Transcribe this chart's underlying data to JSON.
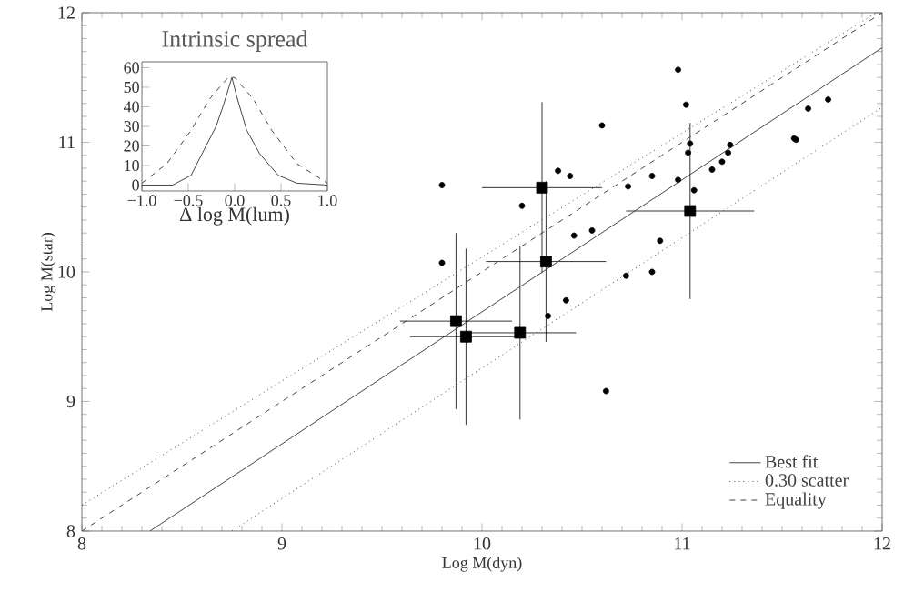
{
  "chart_data": [
    {
      "type": "scatter",
      "xlabel": "Log M(dyn)",
      "ylabel": "Log M(star)",
      "xlim": [
        8,
        12
      ],
      "ylim": [
        8,
        12
      ],
      "xticks": [
        8,
        9,
        10,
        11,
        12
      ],
      "yticks": [
        8,
        9,
        10,
        11,
        12
      ],
      "grid": false,
      "legend": "bottom right",
      "series": [
        {
          "type": "scatter",
          "marker": "circle",
          "color": "#000000",
          "x": [
            9.8,
            9.8,
            10.2,
            10.38,
            10.44,
            10.6,
            10.73,
            10.85,
            10.46,
            10.55,
            10.89,
            10.72,
            10.85,
            10.42,
            10.98,
            11.02,
            11.04,
            11.03,
            10.98,
            11.06,
            11.15,
            11.2,
            11.23,
            11.24,
            11.56,
            11.57,
            11.63,
            11.73,
            10.33,
            10.62
          ],
          "values": [
            10.67,
            10.07,
            10.51,
            10.78,
            10.74,
            11.13,
            10.66,
            10.74,
            10.28,
            10.32,
            10.24,
            9.97,
            10.0,
            9.78,
            11.56,
            11.29,
            10.99,
            10.92,
            10.71,
            10.63,
            10.79,
            10.85,
            10.92,
            10.98,
            11.03,
            11.02,
            11.26,
            11.33,
            9.66,
            9.08
          ]
        },
        {
          "type": "scatter",
          "marker": "square",
          "color": "#000000",
          "x": [
            10.3,
            10.32,
            11.04,
            9.87,
            9.92,
            10.19
          ],
          "values": [
            10.65,
            10.08,
            10.47,
            9.62,
            9.5,
            9.53
          ],
          "errors": [
            0.66,
            0.62,
            0.68,
            0.68,
            0.68,
            0.67
          ],
          "xerrors": [
            0.3,
            0.3,
            0.32,
            0.28,
            0.28,
            0.28
          ]
        },
        {
          "type": "line",
          "name": "Best fit",
          "line_style": "solid",
          "color": "#444444",
          "x": [
            8.34,
            12
          ],
          "values": [
            8,
            11.73
          ]
        },
        {
          "type": "line",
          "name": "0.30 scatter",
          "line_style": "dotted",
          "color": "#444444",
          "x": [
            8,
            11.97
          ],
          "values": [
            8.2,
            12
          ]
        },
        {
          "type": "line",
          "line_style": "dotted",
          "color": "#444444",
          "x": [
            8.75,
            12
          ],
          "values": [
            8,
            11.27
          ]
        },
        {
          "type": "line",
          "name": "Equality",
          "line_style": "dashed",
          "color": "#444444",
          "x": [
            8,
            12
          ],
          "values": [
            8,
            12
          ]
        }
      ]
    },
    {
      "type": "line",
      "title": "Intrinsic spread",
      "xlabel": "Δ log M(lum)",
      "xlim": [
        -1,
        1
      ],
      "ylim": [
        -3,
        63
      ],
      "xticks": [
        {
          "value": -1,
          "label": "−1.0"
        },
        {
          "value": -0.5,
          "label": "−0.5"
        },
        {
          "value": 0,
          "label": "0.0"
        },
        {
          "value": 0.5,
          "label": "0.5"
        },
        {
          "value": 1,
          "label": "1.0"
        }
      ],
      "yticks": [
        0,
        10,
        20,
        30,
        40,
        50,
        60
      ],
      "grid": false,
      "legend": false,
      "series": [
        {
          "line_style": "solid",
          "color": "#444444",
          "x": [
            -1,
            -0.67,
            -0.47,
            -0.33,
            -0.2,
            -0.12,
            -0.03,
            0.03,
            0.13,
            0.27,
            0.47,
            0.67,
            1
          ],
          "values": [
            0,
            0,
            5,
            18,
            30,
            41,
            55,
            44,
            28,
            16,
            5,
            1,
            0
          ]
        },
        {
          "line_style": "dashed",
          "color": "#444444",
          "x": [
            -1,
            -0.73,
            -0.47,
            -0.27,
            -0.07,
            0,
            0.2,
            0.4,
            0.67,
            1
          ],
          "values": [
            1,
            11,
            28,
            44,
            55,
            55,
            44,
            28,
            11,
            1
          ]
        }
      ]
    }
  ]
}
